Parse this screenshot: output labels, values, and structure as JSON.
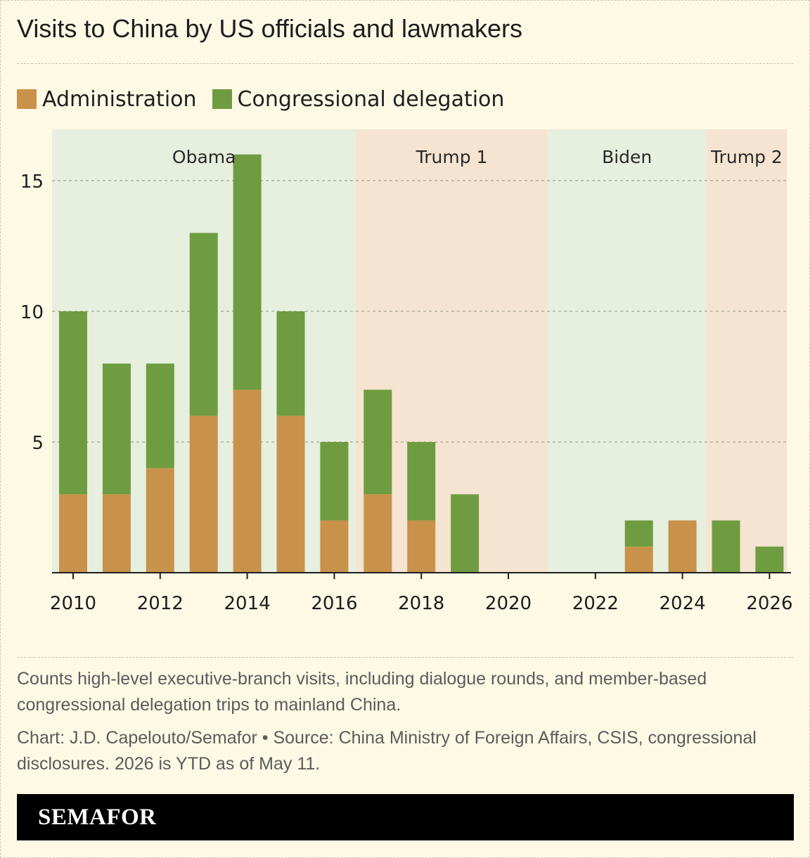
{
  "title": "Visits to China by US officials and lawmakers",
  "legend": {
    "administration": "Administration",
    "congressional": "Congressional delegation"
  },
  "colors": {
    "administration": "#c8924a",
    "congressional": "#6f9c40",
    "era_dem": "#e7efdf",
    "era_rep": "#f5e4d1",
    "background": "#fdf9e5"
  },
  "eras": [
    {
      "label": "Obama",
      "start": 2009.5,
      "end": 2016.5,
      "party": "dem"
    },
    {
      "label": "Trump 1",
      "start": 2016.5,
      "end": 2020.9,
      "party": "rep"
    },
    {
      "label": "Biden",
      "start": 2020.9,
      "end": 2024.55,
      "party": "dem"
    },
    {
      "label": "Trump 2",
      "start": 2024.55,
      "end": 2026.4,
      "party": "rep"
    }
  ],
  "chart_data": {
    "type": "bar",
    "stacked": true,
    "categories": [
      2010,
      2011,
      2012,
      2013,
      2014,
      2015,
      2016,
      2017,
      2018,
      2019,
      2020,
      2021,
      2022,
      2023,
      2024,
      2025,
      2026
    ],
    "series": [
      {
        "name": "Administration",
        "values": [
          3,
          3,
          4,
          6,
          7,
          6,
          2,
          3,
          2,
          0,
          0,
          0,
          0,
          1,
          2,
          0,
          0
        ]
      },
      {
        "name": "Congressional delegation",
        "values": [
          7,
          5,
          4,
          7,
          9,
          4,
          3,
          4,
          3,
          3,
          0,
          0,
          0,
          1,
          0,
          2,
          1
        ]
      }
    ],
    "x_ticks": [
      2010,
      2012,
      2014,
      2016,
      2018,
      2020,
      2022,
      2024,
      2026
    ],
    "y_ticks": [
      5,
      10,
      15
    ],
    "ylim": [
      0,
      15.4
    ],
    "grid": "horizontal-dashed",
    "legend_position": "top-left"
  },
  "notes": {
    "description": "Counts high-level executive-branch visits, including dialogue rounds, and member-based congressional delegation trips to mainland China.",
    "credit": "Chart: J.D. Capelouto/Semafor • Source: China Ministry of Foreign Affairs, CSIS, congressional disclosures. 2026 is YTD as of May 11."
  },
  "footer": {
    "brand": "SEMAFOR"
  }
}
